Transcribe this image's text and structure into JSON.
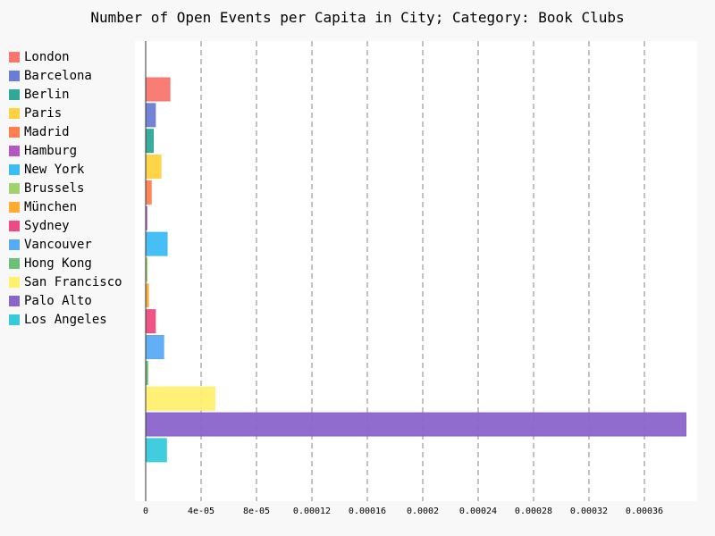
{
  "chart_data": {
    "type": "bar",
    "orientation": "horizontal",
    "title": "Number of Open Events per Capita in City; Category: Book Clubs",
    "xlabel": "",
    "ylabel": "",
    "xlim": [
      0,
      0.0004
    ],
    "x_ticks": [
      0,
      4e-05,
      8e-05,
      0.00012,
      0.00016,
      0.0002,
      0.00024,
      0.00028,
      0.00032,
      0.00036
    ],
    "x_tick_labels": [
      "0",
      "4e-05",
      "8e-05",
      "0.00012",
      "0.00016",
      "0.0002",
      "0.00024",
      "0.00028",
      "0.00032",
      "0.00036"
    ],
    "grid": "vertical dashed",
    "legend_position": "left",
    "series": [
      {
        "name": "London",
        "value": 1.75e-05,
        "color": "#f8766d"
      },
      {
        "name": "Barcelona",
        "value": 7e-06,
        "color": "#6b7dd4"
      },
      {
        "name": "Berlin",
        "value": 5.5e-06,
        "color": "#2fa897"
      },
      {
        "name": "Paris",
        "value": 1.1e-05,
        "color": "#ffd23f"
      },
      {
        "name": "Madrid",
        "value": 4e-06,
        "color": "#ff7f50"
      },
      {
        "name": "Hamburg",
        "value": 8e-07,
        "color": "#b455c2"
      },
      {
        "name": "New York",
        "value": 1.55e-05,
        "color": "#3bbcf4"
      },
      {
        "name": "Brussels",
        "value": 1e-06,
        "color": "#9fd36b"
      },
      {
        "name": "München",
        "value": 2e-06,
        "color": "#ffaa33"
      },
      {
        "name": "Sydney",
        "value": 7e-06,
        "color": "#ee4b80"
      },
      {
        "name": "Vancouver",
        "value": 1.3e-05,
        "color": "#5aabf5"
      },
      {
        "name": "Hong Kong",
        "value": 1.5e-06,
        "color": "#6cc07a"
      },
      {
        "name": "San Francisco",
        "value": 5e-05,
        "color": "#fff06e"
      },
      {
        "name": "Palo Alto",
        "value": 0.00039,
        "color": "#8b64cc"
      },
      {
        "name": "Los Angeles",
        "value": 1.5e-05,
        "color": "#37cadb"
      }
    ]
  }
}
